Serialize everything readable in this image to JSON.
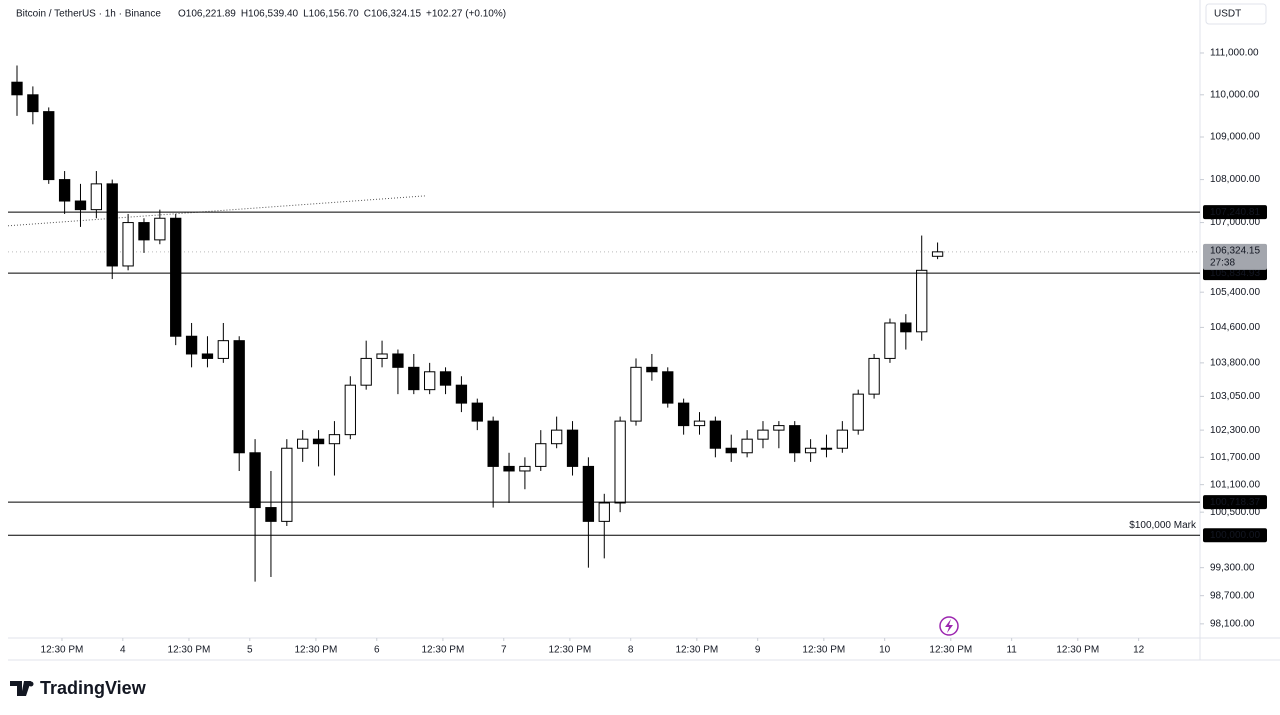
{
  "chart_data": {
    "type": "candlestick",
    "title": "Bitcoin / TetherUS · 1h · Binance",
    "ohlc_labels": [
      "O106,221.89",
      "H106,539.40",
      "L106,156.70",
      "C106,324.15"
    ],
    "change": "+102.27 (+0.10%)",
    "currency": "USDT",
    "log_scale": true,
    "up_color": "#ffffff",
    "down_color": "#000000",
    "border_color": "#000000",
    "x": [
      4,
      7,
      10,
      13,
      16,
      19,
      22,
      25,
      28,
      31,
      34,
      37,
      40,
      43,
      46,
      49,
      52,
      55,
      58,
      61,
      64,
      67,
      70,
      73,
      76,
      79,
      82,
      85,
      88,
      91,
      94,
      97,
      100,
      103,
      106,
      109,
      112,
      115,
      118,
      121,
      124,
      127,
      130,
      133,
      136,
      139,
      142,
      145,
      148,
      151,
      154,
      157,
      160,
      163,
      166,
      169,
      172,
      175,
      178
    ],
    "open": [
      110300,
      110000,
      109600,
      108000,
      107500,
      107300,
      107900,
      106000,
      107000,
      106600,
      107100,
      104400,
      104000,
      103900,
      104300,
      101800,
      100600,
      100300,
      101900,
      102100,
      102000,
      102200,
      103300,
      103900,
      104000,
      103700,
      103200,
      103600,
      103300,
      102900,
      102500,
      101500,
      101400,
      101500,
      102000,
      102300,
      101500,
      100300,
      100700,
      102500,
      103700,
      103600,
      102900,
      102400,
      102500,
      101900,
      101800,
      102100,
      102300,
      102400,
      101800,
      101900,
      101900,
      102300,
      103100,
      103900,
      104700,
      104500,
      106221.89
    ],
    "high": [
      110700,
      110200,
      109700,
      108200,
      107900,
      108200,
      108000,
      107200,
      107100,
      107300,
      107200,
      104700,
      104400,
      104700,
      104400,
      102100,
      101400,
      102100,
      102300,
      102300,
      102500,
      103500,
      104300,
      104300,
      104100,
      104000,
      103800,
      103700,
      103500,
      103000,
      102600,
      101800,
      101700,
      102300,
      102600,
      102500,
      101700,
      100900,
      102600,
      103900,
      104000,
      103700,
      103000,
      102700,
      102600,
      102200,
      102300,
      102500,
      102500,
      102500,
      102100,
      102200,
      102500,
      103200,
      104000,
      104800,
      104900,
      106700,
      106539.4
    ],
    "low": [
      109500,
      109300,
      107900,
      107200,
      106900,
      107100,
      105700,
      105900,
      106300,
      106500,
      104200,
      103700,
      103700,
      103800,
      101400,
      99000,
      99100,
      100200,
      101600,
      101500,
      101300,
      102100,
      103200,
      103700,
      103100,
      103100,
      103100,
      103100,
      102700,
      102300,
      100600,
      100700,
      101000,
      101400,
      101900,
      101300,
      99300,
      99500,
      100500,
      102400,
      103400,
      102800,
      102200,
      102200,
      101700,
      101600,
      101700,
      101900,
      101900,
      101600,
      101600,
      101700,
      101800,
      102200,
      103000,
      103800,
      104100,
      104300,
      106156.7
    ],
    "close": [
      110000,
      109600,
      108000,
      107500,
      107300,
      107900,
      106000,
      107000,
      106600,
      107100,
      104400,
      104000,
      103900,
      104300,
      101800,
      100600,
      100300,
      101900,
      102100,
      102000,
      102200,
      103300,
      103900,
      104000,
      103700,
      103200,
      103600,
      103300,
      102900,
      102500,
      101500,
      101400,
      101500,
      102000,
      102300,
      101500,
      100300,
      100700,
      102500,
      103700,
      103600,
      102900,
      102400,
      102500,
      101900,
      101800,
      102100,
      102300,
      102400,
      101800,
      101900,
      101900,
      102300,
      103100,
      103900,
      104700,
      104500,
      105900,
      106324.15
    ],
    "xlim": [
      2.3,
      227.6
    ],
    "xticks": [
      {
        "value": 12.5,
        "label": "12:30 PM"
      },
      {
        "value": 24,
        "label": "4"
      },
      {
        "value": 36.5,
        "label": "12:30 PM"
      },
      {
        "value": 48,
        "label": "5"
      },
      {
        "value": 60.5,
        "label": "12:30 PM"
      },
      {
        "value": 72,
        "label": "6"
      },
      {
        "value": 84.5,
        "label": "12:30 PM"
      },
      {
        "value": 96,
        "label": "7"
      },
      {
        "value": 108.5,
        "label": "12:30 PM"
      },
      {
        "value": 120,
        "label": "8"
      },
      {
        "value": 132.5,
        "label": "12:30 PM"
      },
      {
        "value": 144,
        "label": "9"
      },
      {
        "value": 156.5,
        "label": "12:30 PM"
      },
      {
        "value": 168,
        "label": "10"
      },
      {
        "value": 180.5,
        "label": "12:30 PM"
      },
      {
        "value": 192,
        "label": "11"
      },
      {
        "value": 204.5,
        "label": "12:30 PM"
      },
      {
        "value": 216,
        "label": "12"
      }
    ],
    "ylim": [
      97800,
      112280
    ],
    "yticks": [
      {
        "value": 111000,
        "label": "111,000.00"
      },
      {
        "value": 110000,
        "label": "110,000.00"
      },
      {
        "value": 109000,
        "label": "109,000.00"
      },
      {
        "value": 108000,
        "label": "108,000.00"
      },
      {
        "value": 107000,
        "label": "107,000.00"
      },
      {
        "value": 105400,
        "label": "105,400.00"
      },
      {
        "value": 104600,
        "label": "104,600.00"
      },
      {
        "value": 103800,
        "label": "103,800.00"
      },
      {
        "value": 103050,
        "label": "103,050.00"
      },
      {
        "value": 102300,
        "label": "102,300.00"
      },
      {
        "value": 101700,
        "label": "101,700.00"
      },
      {
        "value": 101100,
        "label": "101,100.00"
      },
      {
        "value": 100500,
        "label": "100,500.00"
      },
      {
        "value": 99300,
        "label": "99,300.00"
      },
      {
        "value": 98700,
        "label": "98,700.00"
      },
      {
        "value": 98100,
        "label": "98,100.00"
      }
    ],
    "levels": {
      "values": [
        107240.81,
        105834.93,
        100718.37,
        100000.0
      ],
      "value_labels": [
        "107,240.81",
        "105,834.93",
        "100,718.37",
        "100,000.00"
      ]
    },
    "last_price": {
      "value": 106324.15,
      "label": "106,324.15",
      "countdown": "27:38"
    },
    "trendline": {
      "x": [
        2.3,
        81.1
      ],
      "y": [
        106925,
        107620
      ]
    },
    "annotation": {
      "text": "$100,000 Mark",
      "color": "#e0283b"
    },
    "brand": "TradingView"
  }
}
